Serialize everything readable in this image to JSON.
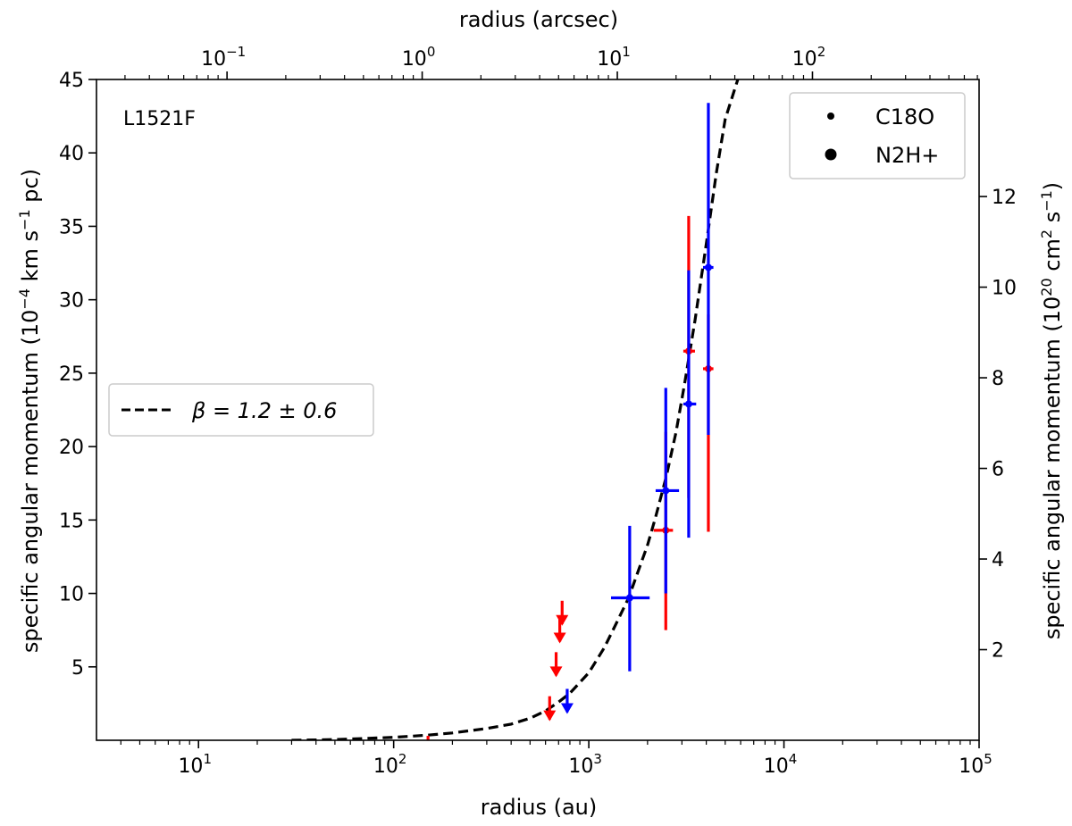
{
  "chart_data": {
    "type": "scatter",
    "panel_label": "L1521F",
    "xlabel": "radius (au)",
    "xlabel_top": "radius (arcsec)",
    "ylabel": "specific angular momentum (10",
    "ylabel_exp": "−4",
    "ylabel_tail": " km s",
    "ylabel_exp2": "−1",
    "ylabel_end": " pc)",
    "ylabel_right": "specific angular momentum (10",
    "ylabel_right_exp": "20",
    "ylabel_right_mid": " cm",
    "ylabel_right_exp2": "2",
    "ylabel_right_mid2": " s",
    "ylabel_right_exp3": "−1",
    "ylabel_right_end": ")",
    "x_scale": "log",
    "xlim": [
      3,
      100000
    ],
    "ylim": [
      0,
      45
    ],
    "x_ticks": [
      10,
      100,
      1000,
      10000,
      100000
    ],
    "x_tick_labels": [
      {
        "base": "10",
        "exp": "1"
      },
      {
        "base": "10",
        "exp": "2"
      },
      {
        "base": "10",
        "exp": "3"
      },
      {
        "base": "10",
        "exp": "4"
      },
      {
        "base": "10",
        "exp": "5"
      }
    ],
    "x_top_ticks": [
      0.1,
      1,
      10,
      100
    ],
    "x_top_tick_labels": [
      {
        "base": "10",
        "exp": "−1"
      },
      {
        "base": "10",
        "exp": "0"
      },
      {
        "base": "10",
        "exp": "1"
      },
      {
        "base": "10",
        "exp": "2"
      }
    ],
    "y_ticks": [
      5,
      10,
      15,
      20,
      25,
      30,
      35,
      40,
      45
    ],
    "y_tick_labels": [
      "5",
      "10",
      "15",
      "20",
      "25",
      "30",
      "35",
      "40",
      "45"
    ],
    "y_right_ticks": [
      2,
      4,
      6,
      8,
      10,
      12
    ],
    "y_right_tick_labels": [
      "2",
      "4",
      "6",
      "8",
      "10",
      "12"
    ],
    "legend_markers": {
      "placement": "top-right",
      "entries": [
        {
          "label": "C18O",
          "marker": "small-dot"
        },
        {
          "label": "N2H+",
          "marker": "large-dot"
        }
      ]
    },
    "legend_fit": {
      "placement": "center-left",
      "label": "β = 1.2 ± 0.6",
      "style": "dashed"
    },
    "fit_curve": {
      "style": "dashed",
      "color": "#000000",
      "points": [
        [
          30,
          0.0
        ],
        [
          50,
          0.05
        ],
        [
          80,
          0.15
        ],
        [
          100,
          0.2
        ],
        [
          150,
          0.35
        ],
        [
          200,
          0.5
        ],
        [
          300,
          0.8
        ],
        [
          400,
          1.1
        ],
        [
          500,
          1.5
        ],
        [
          600,
          2.0
        ],
        [
          700,
          2.6
        ],
        [
          800,
          3.2
        ],
        [
          1000,
          4.6
        ],
        [
          1200,
          6.3
        ],
        [
          1400,
          8.1
        ],
        [
          1600,
          9.7
        ],
        [
          1800,
          11.6
        ],
        [
          2000,
          13.3
        ],
        [
          2200,
          15.2
        ],
        [
          2500,
          18.0
        ],
        [
          2800,
          21.0
        ],
        [
          3100,
          24.3
        ],
        [
          3500,
          28.6
        ],
        [
          4000,
          33.8
        ],
        [
          4500,
          38.6
        ],
        [
          5000,
          42.3
        ],
        [
          5800,
          45.0
        ]
      ]
    },
    "series": [
      {
        "color": "#ff0000",
        "points": [
          {
            "x": 2480,
            "y": 14.3,
            "xerr": [
              2150,
              2700
            ],
            "yerr": [
              7.5,
              21.0
            ]
          },
          {
            "x": 3250,
            "y": 26.5,
            "xerr": [
              3050,
              3500
            ],
            "yerr": [
              16.5,
              35.7
            ]
          },
          {
            "x": 4100,
            "y": 25.3,
            "xerr": [
              3850,
              4350
            ],
            "yerr": [
              14.2,
              29.0
            ]
          }
        ],
        "upper_limits": [
          {
            "x": 630,
            "y": 3.0
          },
          {
            "x": 680,
            "y": 6.0
          },
          {
            "x": 710,
            "y": 8.3
          },
          {
            "x": 730,
            "y": 9.5
          },
          {
            "x": 150,
            "y": 0.3
          }
        ]
      },
      {
        "color": "#0000ff",
        "points": [
          {
            "x": 1620,
            "y": 9.7,
            "xerr": [
              1300,
              2050
            ],
            "yerr": [
              4.7,
              14.6
            ]
          },
          {
            "x": 2480,
            "y": 17.0,
            "xerr": [
              2200,
              2900
            ],
            "yerr": [
              10.0,
              24.0
            ]
          },
          {
            "x": 3250,
            "y": 22.9,
            "xerr": [
              3050,
              3550
            ],
            "yerr": [
              13.8,
              32.0
            ]
          },
          {
            "x": 4100,
            "y": 32.2,
            "xerr": [
              3850,
              4350
            ],
            "yerr": [
              20.8,
              43.4
            ]
          }
        ],
        "upper_limits": [
          {
            "x": 775,
            "y": 3.5
          }
        ]
      }
    ]
  }
}
